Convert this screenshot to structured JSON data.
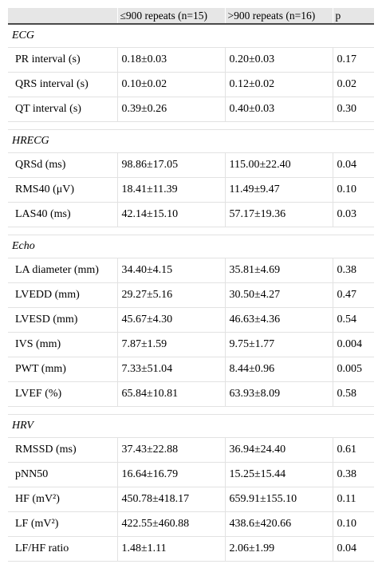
{
  "table": {
    "headers": [
      "",
      "≤900 repeats (n=15)",
      ">900 repeats (n=16)",
      "p"
    ],
    "sections": [
      {
        "name": "ECG",
        "rows": [
          [
            "PR interval (s)",
            "0.18±0.03",
            "0.20±0.03",
            "0.17"
          ],
          [
            "QRS interval (s)",
            "0.10±0.02",
            "0.12±0.02",
            "0.02"
          ],
          [
            "QT interval (s)",
            "0.39±0.26",
            "0.40±0.03",
            "0.30"
          ]
        ]
      },
      {
        "name": "HRECG",
        "rows": [
          [
            "QRSd (ms)",
            "98.86±17.05",
            "115.00±22.40",
            "0.04"
          ],
          [
            "RMS40 (μV)",
            "18.41±11.39",
            "11.49±9.47",
            "0.10"
          ],
          [
            "LAS40 (ms)",
            "42.14±15.10",
            "57.17±19.36",
            "0.03"
          ]
        ]
      },
      {
        "name": "Echo",
        "rows": [
          [
            "LA diameter (mm)",
            "34.40±4.15",
            "35.81±4.69",
            "0.38"
          ],
          [
            "LVEDD (mm)",
            "29.27±5.16",
            "30.50±4.27",
            "0.47"
          ],
          [
            "LVESD (mm)",
            "45.67±4.30",
            "46.63±4.36",
            "0.54"
          ],
          [
            "IVS (mm)",
            "7.87±1.59",
            "9.75±1.77",
            "0.004"
          ],
          [
            "PWT (mm)",
            "7.33±51.04",
            "8.44±0.96",
            "0.005"
          ],
          [
            "LVEF (%)",
            "65.84±10.81",
            "63.93±8.09",
            "0.58"
          ]
        ]
      },
      {
        "name": "HRV",
        "rows": [
          [
            "RMSSD (ms)",
            "37.43±22.88",
            "36.94±24.40",
            "0.61"
          ],
          [
            "pNN50",
            "16.64±16.79",
            "15.25±15.44",
            "0.38"
          ],
          [
            "HF (mV²)",
            "450.78±418.17",
            "659.91±155.10",
            "0.11"
          ],
          [
            "LF (mV²)",
            "422.55±460.88",
            "438.6±420.66",
            "0.10"
          ],
          [
            "LF/HF ratio",
            "1.48±1.11",
            "2.06±1.99",
            "0.04"
          ]
        ]
      }
    ]
  }
}
